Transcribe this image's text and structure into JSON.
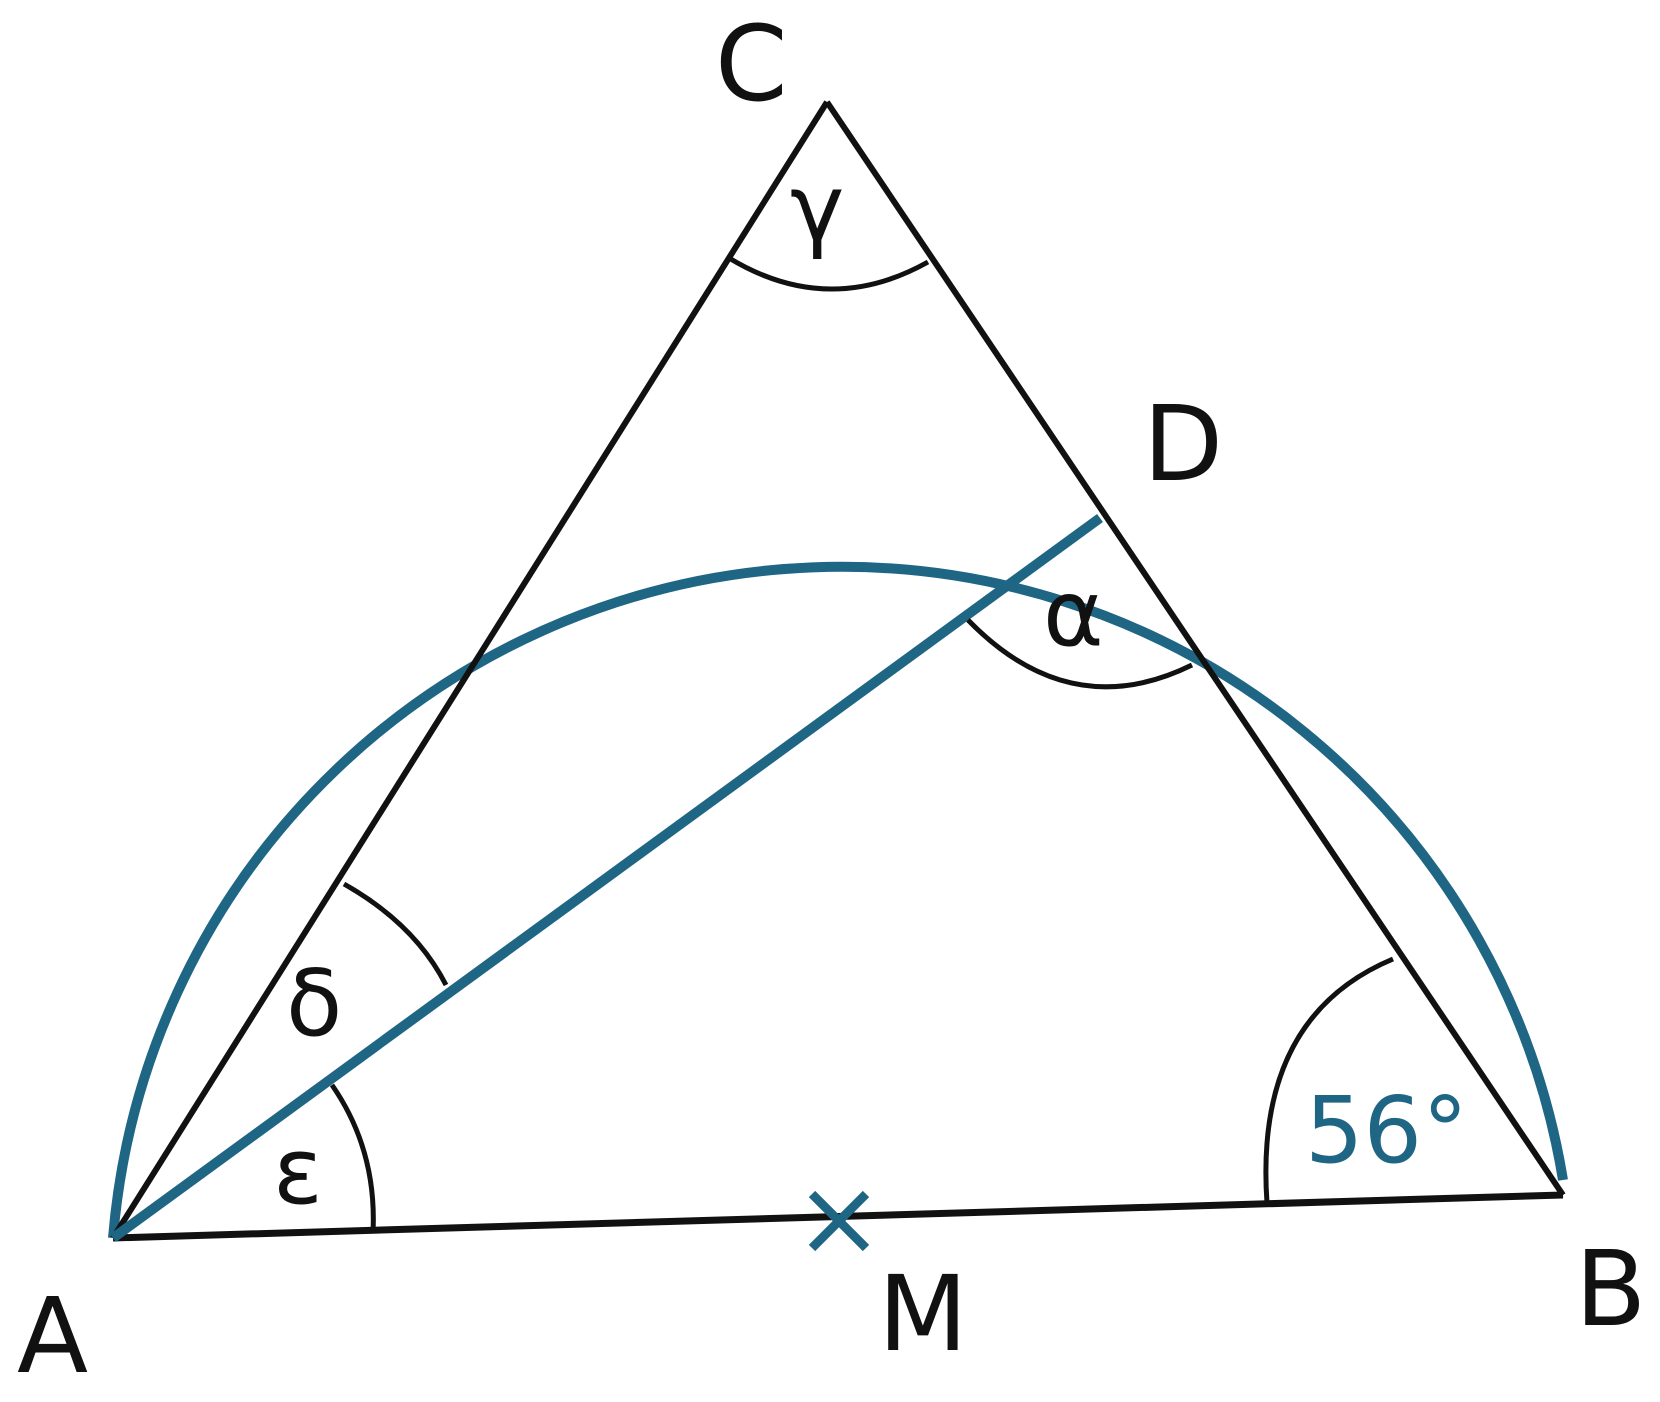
{
  "figure": {
    "points": {
      "A": "A",
      "B": "B",
      "C": "C",
      "D": "D",
      "M": "M"
    },
    "angles": {
      "gamma": "γ",
      "alpha": "α",
      "delta": "δ",
      "epsilon": "ε",
      "at_B": "56°"
    }
  },
  "colors": {
    "line": "#111111",
    "circle": "#1f6685",
    "angle_label_B": "#1f6685"
  }
}
